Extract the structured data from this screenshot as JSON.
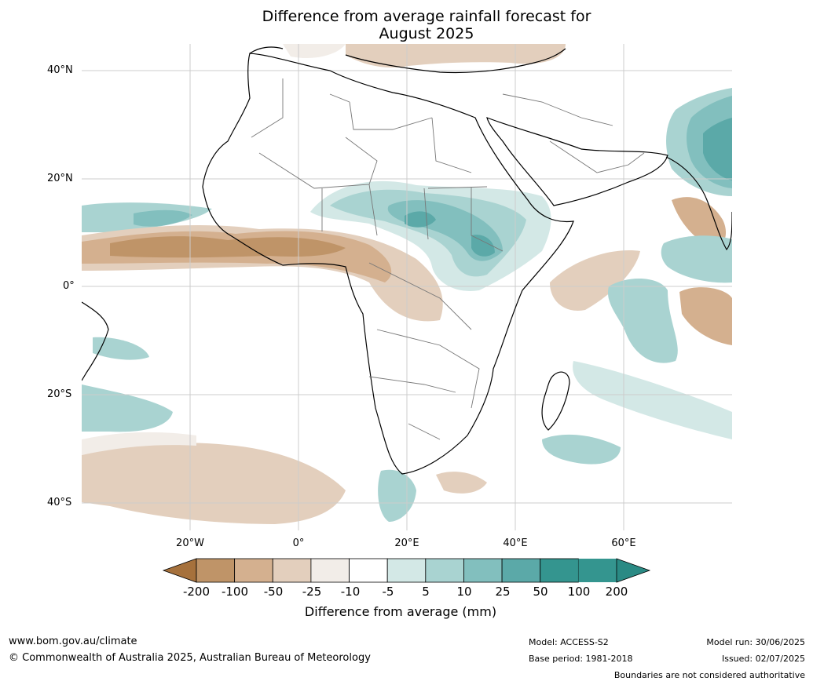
{
  "title_line1": "Difference from average rainfall forecast for",
  "title_line2": "August 2025",
  "lat_labels": [
    "40°N",
    "20°N",
    "0°",
    "20°S",
    "40°S"
  ],
  "lon_labels": [
    "20°W",
    "0°",
    "20°E",
    "40°E",
    "60°E"
  ],
  "colorbar": {
    "labels": [
      "-200",
      "-100",
      "-50",
      "-25",
      "-10",
      "-5",
      "5",
      "10",
      "25",
      "50",
      "100",
      "200"
    ],
    "colors": [
      "#a6713c",
      "#bf9468",
      "#d4b08f",
      "#e3cfbd",
      "#f2ede8",
      "#ffffff",
      "#d3e8e6",
      "#a9d3d1",
      "#82bfbe",
      "#5ba9a8",
      "#34958f",
      "#2a8a84"
    ],
    "title": "Difference from average (mm)"
  },
  "footer": {
    "url": "www.bom.gov.au/climate",
    "copyright": "© Commonwealth of Australia 2025, Australian Bureau of Meteorology",
    "model": "Model: ACCESS-S2",
    "base_period": "Base period: 1981-2018",
    "model_run": "Model run: 30/06/2025",
    "issued": "Issued: 02/07/2025",
    "disclaimer": "Boundaries are not considered authoritative"
  }
}
